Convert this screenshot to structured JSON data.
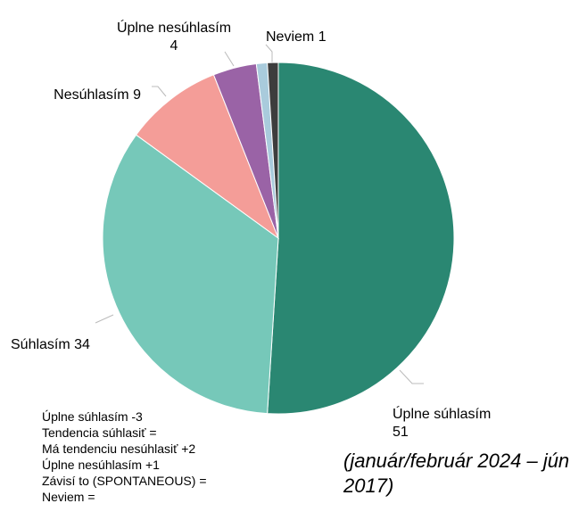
{
  "chart_data": {
    "type": "pie",
    "subtitle": "(január/február 2024 – jún 2017)",
    "categories": [
      "Úplne súhlasím",
      "Súhlasím",
      "Nesúhlasím",
      "Úplne nesúhlasím",
      null,
      "Neviem"
    ],
    "values": [
      51,
      34,
      9,
      4,
      1,
      1
    ],
    "colors": [
      "#2a8772",
      "#76c8b9",
      "#f49d98",
      "#9a63a6",
      "#a9cbdc",
      "#3d3d3d"
    ],
    "notes": [
      "Úplne súhlasím -3",
      "Tendencia súhlasiť =",
      "Má tendenciu nesúhlasiť +2",
      "Úplne nesúhlasím +1",
      "Závisí to (SPONTANEOUS) =",
      "Neviem ="
    ]
  }
}
